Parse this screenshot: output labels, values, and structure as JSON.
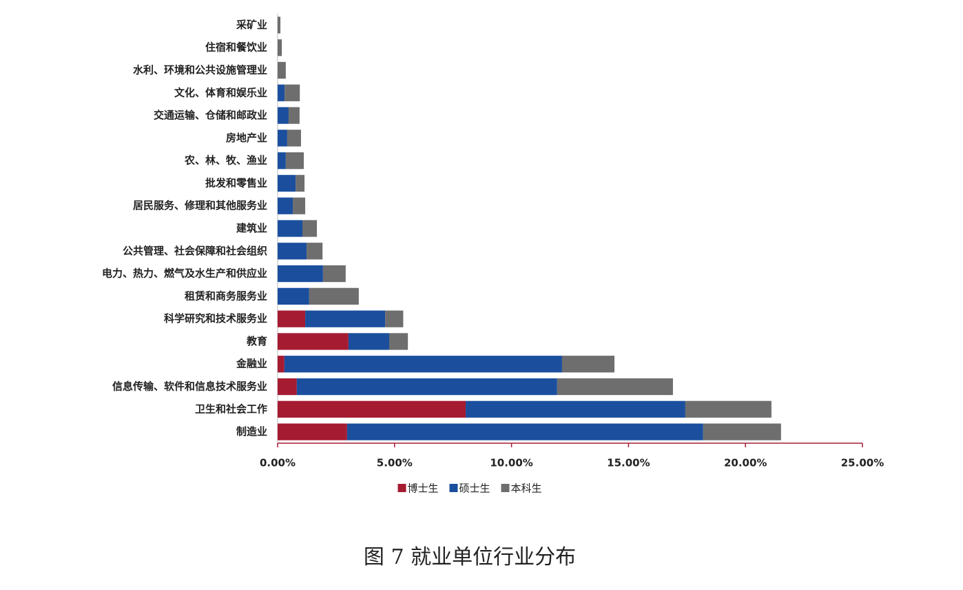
{
  "chart_data": {
    "type": "stacked-barh",
    "title": "图 7 就业单位行业分布",
    "categories": [
      "采矿业",
      "住宿和餐饮业",
      "水利、环境和公共设施管理业",
      "文化、体育和娱乐业",
      "交通运输、仓储和邮政业",
      "房地产业",
      "农、林、牧、渔业",
      "批发和零售业",
      "居民服务、修理和其他服务业",
      "建筑业",
      "公共管理、社会保障和社会组织",
      "电力、热力、燃气及水生产和供应业",
      "租赁和商务服务业",
      "科学研究和技术服务业",
      "教育",
      "金融业",
      "信息传输、软件和信息技术服务业",
      "卫生和社会工作",
      "制造业"
    ],
    "series": [
      {
        "name": "博士生",
        "color": "#a51b32",
        "values": [
          0,
          0,
          0,
          0,
          0,
          0,
          0,
          0,
          0,
          0,
          0,
          0,
          0,
          1.18,
          3.03,
          0.29,
          0.82,
          8.04,
          2.97
        ]
      },
      {
        "name": "硕士生",
        "color": "#1b4f9e",
        "values": [
          0,
          0,
          0,
          0.3,
          0.47,
          0.41,
          0.35,
          0.77,
          0.65,
          1.06,
          1.24,
          1.94,
          1.35,
          3.42,
          1.74,
          11.87,
          11.13,
          9.39,
          15.22
        ]
      },
      {
        "name": "本科生",
        "color": "#6e6e6e",
        "values": [
          0.12,
          0.18,
          0.35,
          0.65,
          0.47,
          0.59,
          0.77,
          0.38,
          0.53,
          0.62,
          0.68,
          0.97,
          2.12,
          0.77,
          0.8,
          2.24,
          4.95,
          3.68,
          3.33
        ]
      }
    ],
    "xlim": [
      0,
      25
    ],
    "xticks": [
      {
        "value": 0,
        "label": "0.00%"
      },
      {
        "value": 5,
        "label": "5.00%"
      },
      {
        "value": 10,
        "label": "10.00%"
      },
      {
        "value": 15,
        "label": "15.00%"
      },
      {
        "value": 20,
        "label": "20.00%"
      },
      {
        "value": 25,
        "label": "25.00%"
      }
    ],
    "legend": "bottom"
  }
}
